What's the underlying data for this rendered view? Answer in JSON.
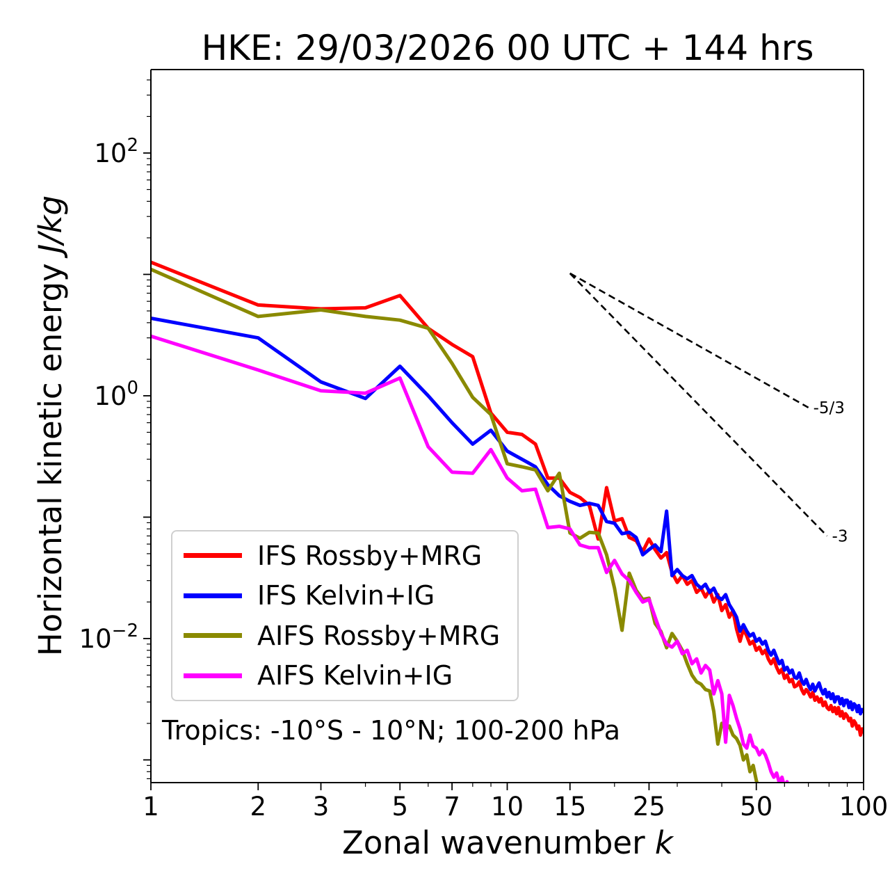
{
  "title": "HKE: 29/03/2026 00 UTC + 144 hrs",
  "annotation": "Tropics: -10°S - 10°N; 100-200 hPa",
  "axes": {
    "xlabel_main": "Zonal wavenumber ",
    "xlabel_italic": "k",
    "ylabel_main": "Horizontal kinetic energy ",
    "ylabel_italic": "J/kg",
    "x_major_ticks": [
      1,
      2,
      3,
      5,
      7,
      10,
      15,
      25,
      50,
      100
    ],
    "x_minor_ticks": [
      4,
      6,
      8,
      9,
      20,
      30,
      40,
      60,
      70,
      80,
      90
    ],
    "y_major_exponents": [
      2,
      1,
      0,
      -1,
      -2,
      -3
    ],
    "y_labeled_exponents": [
      2,
      0,
      -2
    ],
    "xlim": [
      1,
      100
    ],
    "ylim": [
      0.00065,
      487
    ]
  },
  "legend": {
    "items": [
      {
        "label": "IFS Rossby+MRG",
        "color": "#ff0000"
      },
      {
        "label": "IFS Kelvin+IG",
        "color": "#0000ff"
      },
      {
        "label": "AIFS Rossby+MRG",
        "color": "#8a8a00"
      },
      {
        "label": "AIFS Kelvin+IG",
        "color": "#ff00ff"
      }
    ]
  },
  "ref_slopes": [
    {
      "label": "-5/3",
      "x": [
        15,
        70
      ],
      "y": [
        10.2,
        0.8
      ]
    },
    {
      "label": "-3",
      "x": [
        15,
        79
      ],
      "y": [
        10.2,
        0.07
      ]
    }
  ],
  "chart_data": {
    "type": "line",
    "x_scale": "log",
    "y_scale": "log",
    "title": "HKE: 29/03/2026 00 UTC + 144 hrs",
    "xlabel": "Zonal wavenumber k",
    "ylabel": "Horizontal kinetic energy J/kg",
    "xlim": [
      1,
      100
    ],
    "ylim": [
      0.00065,
      487
    ],
    "grid": false,
    "legend_position": "lower-left",
    "series": [
      {
        "name": "IFS Rossby+MRG",
        "color": "#ff0000",
        "k_first": 1,
        "k_step": 1,
        "values": [
          12.6,
          5.6,
          5.2,
          5.3,
          6.7,
          3.6,
          2.65,
          2.1,
          0.72,
          0.5,
          0.48,
          0.4,
          0.21,
          0.21,
          0.16,
          0.145,
          0.125,
          0.066,
          0.175,
          0.093,
          0.097,
          0.068,
          0.064,
          0.052,
          0.066,
          0.054,
          0.046,
          0.051,
          0.035,
          0.029,
          0.033,
          0.028,
          0.03,
          0.024,
          0.026,
          0.022,
          0.025,
          0.02,
          0.023,
          0.017,
          0.019,
          0.015,
          0.017,
          0.012,
          0.0095,
          0.012,
          0.0105,
          0.009,
          0.0095,
          0.008,
          0.0085,
          0.0075,
          0.008,
          0.0068,
          0.0062,
          0.0068,
          0.0058,
          0.0052,
          0.0056,
          0.0047,
          0.005,
          0.0044,
          0.0046,
          0.004,
          0.0041,
          0.0044,
          0.0038,
          0.0035,
          0.0038,
          0.0036,
          0.0033,
          0.0036,
          0.0031,
          0.0033,
          0.003,
          0.0032,
          0.0028,
          0.003,
          0.0027,
          0.0026,
          0.0028,
          0.0025,
          0.0027,
          0.0024,
          0.0027,
          0.0023,
          0.0025,
          0.0022,
          0.0024,
          0.0023,
          0.0021,
          0.0022,
          0.0019,
          0.0021,
          0.002,
          0.0018,
          0.0019,
          0.0016,
          0.0018,
          0.0017
        ]
      },
      {
        "name": "IFS Kelvin+IG",
        "color": "#0000ff",
        "k_first": 1,
        "k_step": 1,
        "values": [
          4.35,
          3.0,
          1.3,
          0.95,
          1.75,
          1.0,
          0.6,
          0.4,
          0.52,
          0.35,
          0.3,
          0.26,
          0.185,
          0.15,
          0.135,
          0.125,
          0.13,
          0.125,
          0.092,
          0.089,
          0.073,
          0.075,
          0.068,
          0.049,
          0.054,
          0.059,
          0.052,
          0.112,
          0.033,
          0.037,
          0.033,
          0.031,
          0.033,
          0.028,
          0.026,
          0.028,
          0.024,
          0.026,
          0.022,
          0.021,
          0.023,
          0.019,
          0.017,
          0.015,
          0.0115,
          0.013,
          0.0115,
          0.0105,
          0.011,
          0.0095,
          0.01,
          0.009,
          0.0095,
          0.008,
          0.0073,
          0.008,
          0.007,
          0.0062,
          0.0066,
          0.0055,
          0.0058,
          0.0052,
          0.0055,
          0.0048,
          0.0047,
          0.0052,
          0.0045,
          0.0042,
          0.0046,
          0.0041,
          0.0038,
          0.0042,
          0.0037,
          0.004,
          0.0043,
          0.0038,
          0.0035,
          0.0038,
          0.0033,
          0.0036,
          0.0032,
          0.0035,
          0.003,
          0.0033,
          0.0033,
          0.0029,
          0.0032,
          0.0028,
          0.0031,
          0.0031,
          0.0027,
          0.003,
          0.0026,
          0.0029,
          0.0028,
          0.0025,
          0.0028,
          0.0024,
          0.0026,
          0.0025
        ]
      },
      {
        "name": "AIFS Rossby+MRG",
        "color": "#8a8a00",
        "k_first": 1,
        "k_step": 1,
        "values": [
          11.0,
          4.5,
          5.1,
          4.5,
          4.2,
          3.6,
          1.85,
          0.97,
          0.7,
          0.275,
          0.26,
          0.245,
          0.165,
          0.23,
          0.074,
          0.067,
          0.075,
          0.074,
          0.049,
          0.026,
          0.0117,
          0.0345,
          0.025,
          0.021,
          0.0215,
          0.0133,
          0.0114,
          0.0084,
          0.011,
          0.0095,
          0.008,
          0.0062,
          0.005,
          0.0044,
          0.0042,
          0.0038,
          0.0037,
          0.0025,
          0.00135,
          0.002,
          0.0018,
          0.0019,
          0.0016,
          0.0015,
          0.00132,
          0.001,
          0.0011,
          0.0008,
          0.0009,
          0.00068,
          0.00055
        ]
      },
      {
        "name": "AIFS Kelvin+IG",
        "color": "#ff00ff",
        "k_first": 1,
        "k_step": 1,
        "values": [
          3.1,
          1.63,
          1.1,
          1.05,
          1.4,
          0.38,
          0.235,
          0.23,
          0.36,
          0.21,
          0.165,
          0.17,
          0.082,
          0.084,
          0.08,
          0.059,
          0.056,
          0.056,
          0.035,
          0.044,
          0.034,
          0.03,
          0.024,
          0.02,
          0.021,
          0.015,
          0.011,
          0.009,
          0.0085,
          0.0095,
          0.0075,
          0.008,
          0.0062,
          0.0068,
          0.0052,
          0.006,
          0.0055,
          0.0035,
          0.0045,
          0.0035,
          0.0014,
          0.0034,
          0.0028,
          0.0022,
          0.0018,
          0.00135,
          0.00125,
          0.0016,
          0.0013,
          0.00125,
          0.0011,
          0.0012,
          0.0011,
          0.00095,
          0.0008,
          0.00072,
          0.00078,
          0.00065,
          0.00072,
          0.0006,
          0.00066,
          0.00055
        ]
      }
    ],
    "reference_lines": [
      {
        "label": "-5/3",
        "style": "dashed",
        "color": "#000000",
        "x": [
          15,
          70
        ],
        "y": [
          10.2,
          0.8
        ]
      },
      {
        "label": "-3",
        "style": "dashed",
        "color": "#000000",
        "x": [
          15,
          79
        ],
        "y": [
          10.2,
          0.07
        ]
      }
    ]
  }
}
